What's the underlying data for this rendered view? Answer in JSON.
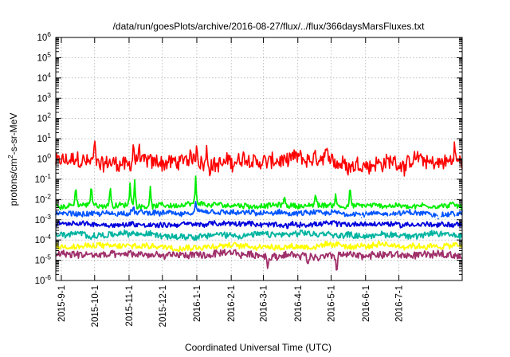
{
  "chart_data": {
    "type": "line",
    "title": "/data/run/goesPlots/archive/2016-08-27/flux/../flux/366daysMarsFluxes.txt",
    "xlabel": "Coordinated Universal Time (UTC)",
    "ylabel": "protons/cm^2-s-sr-MeV",
    "ylabel_parts": {
      "before": "protons/cm",
      "sup": "2",
      "after": "-s-sr-MeV"
    },
    "yscale": "log",
    "ylim": [
      "1e-6",
      "1e6"
    ],
    "y_tick_base": "10",
    "y_tick_exponents": [
      "-6",
      "-5",
      "-4",
      "-3",
      "-2",
      "-1",
      "0",
      "1",
      "2",
      "3",
      "4",
      "5",
      "6"
    ],
    "xlim": [
      "2015-08-27",
      "2016-08-27"
    ],
    "x_ticks": [
      "2015-9-1",
      "2015-10-1",
      "2015-11-1",
      "2015-12-1",
      "2016-1-1",
      "2016-2-1",
      "2016-3-1",
      "2016-4-1",
      "2016-5-1",
      "2016-6-1",
      "2016-7-1"
    ],
    "x_tick_dates": [
      "2015-09-01",
      "2015-10-01",
      "2015-11-01",
      "2015-12-01",
      "2016-01-01",
      "2016-02-01",
      "2016-03-01",
      "2016-04-01",
      "2016-05-01",
      "2016-06-01",
      "2016-07-01"
    ],
    "grid": true,
    "legend": "none",
    "series": [
      {
        "color": "#ff0000",
        "baseline": 0.7,
        "noise_dex": 0.38,
        "spikes": [
          [
            "2015-10-01",
            15
          ],
          [
            "2015-11-05",
            18
          ],
          [
            "2015-11-10",
            12
          ],
          [
            "2016-01-01",
            12
          ],
          [
            "2016-01-10",
            8
          ],
          [
            "2016-08-20",
            8
          ]
        ]
      },
      {
        "color": "#00ee00",
        "baseline": 0.005,
        "noise_dex": 0.12,
        "spikes": [
          [
            "2015-09-14",
            0.1
          ],
          [
            "2015-09-28",
            0.12
          ],
          [
            "2015-10-15",
            0.1
          ],
          [
            "2015-11-02",
            0.12
          ],
          [
            "2015-11-06",
            0.15
          ],
          [
            "2015-11-20",
            0.08
          ],
          [
            "2015-12-31",
            0.15
          ],
          [
            "2016-03-20",
            0.02
          ],
          [
            "2016-04-17",
            0.03
          ],
          [
            "2016-05-05",
            0.02
          ],
          [
            "2016-05-18",
            0.1
          ]
        ]
      },
      {
        "color": "#0055ff",
        "baseline": 0.002,
        "noise_dex": 0.13,
        "spikes": [
          [
            "2015-11-05",
            0.006
          ],
          [
            "2015-12-31",
            0.008
          ]
        ]
      },
      {
        "color": "#ffffff",
        "baseline": 0.0013,
        "noise_dex": 0.1,
        "spikes": []
      },
      {
        "color": "#0000dd",
        "baseline": 0.0006,
        "noise_dex": 0.12,
        "spikes": []
      },
      {
        "color": "#00b4a0",
        "baseline": 0.00018,
        "noise_dex": 0.14,
        "spikes": []
      },
      {
        "color": "#ffff00",
        "baseline": 5e-05,
        "noise_dex": 0.14,
        "spikes": []
      },
      {
        "color": "#a0306a",
        "baseline": 1.8e-05,
        "noise_dex": 0.17,
        "spikes": [
          [
            "2016-03-05",
            2e-06
          ],
          [
            "2016-04-10",
            3e-06
          ],
          [
            "2016-05-06",
            1e-06
          ]
        ]
      }
    ]
  }
}
